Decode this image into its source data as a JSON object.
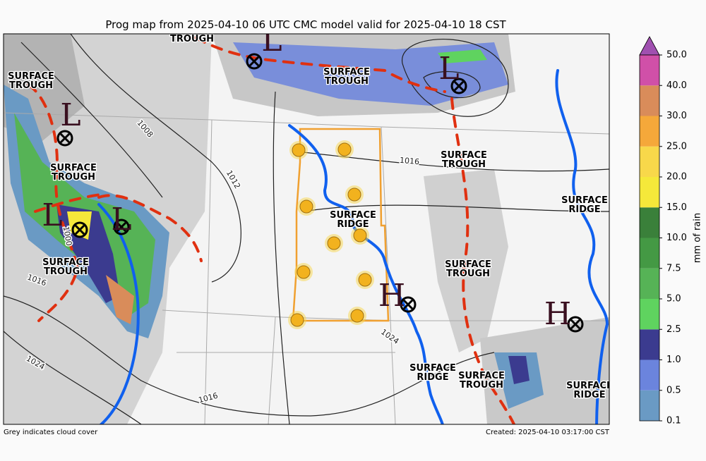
{
  "title": "Prog map from 2025-04-10 06 UTC CMC model valid for 2025-04-10 18 CST",
  "features": [
    [
      "SURFACE",
      "TROUGH"
    ],
    [
      "SURFACE",
      "TROUGH"
    ],
    [
      "SURFACE",
      "TROUGH"
    ],
    [
      "SURFACE",
      "TROUGH"
    ],
    [
      "SURFACE",
      "RIDGE"
    ],
    [
      "SURFACE",
      "TROUGH"
    ],
    [
      "SURFACE",
      "RIDGE"
    ],
    [
      "SURFACE",
      "TROUGH"
    ],
    [
      "SURFACE",
      "TROUGH"
    ],
    [
      "SURFACE",
      "RIDGE"
    ],
    [
      "SURFACE",
      "TROUGH"
    ],
    [
      "SURFACE",
      "RIDGE"
    ]
  ],
  "centers": [
    "L",
    "L",
    "L",
    "L",
    "L",
    "H",
    "H"
  ],
  "contour_labels": [
    "1008",
    "1012",
    "1016",
    "1016",
    "1024",
    "1024",
    "1016",
    "1000"
  ],
  "colorbar": {
    "label": "mm of rain",
    "ticks": [
      "0.1",
      "0.5",
      "1.0",
      "2.5",
      "5.0",
      "7.5",
      "10.0",
      "15.0",
      "20.0",
      "25.0",
      "30.0",
      "40.0",
      "50.0"
    ],
    "colors": [
      "#6a9ac4",
      "#6b84dd",
      "#3b3b8f",
      "#5fd35f",
      "#56b356",
      "#449944",
      "#3a803a",
      "#f5e83a",
      "#f8d84a",
      "#f5a83a",
      "#d98c5a",
      "#d050a8"
    ],
    "extend_color": "#a050b0"
  },
  "footer": {
    "left": "Grey indicates cloud cover",
    "right": "Created: 2025-04-10 03:17:00 CST"
  }
}
